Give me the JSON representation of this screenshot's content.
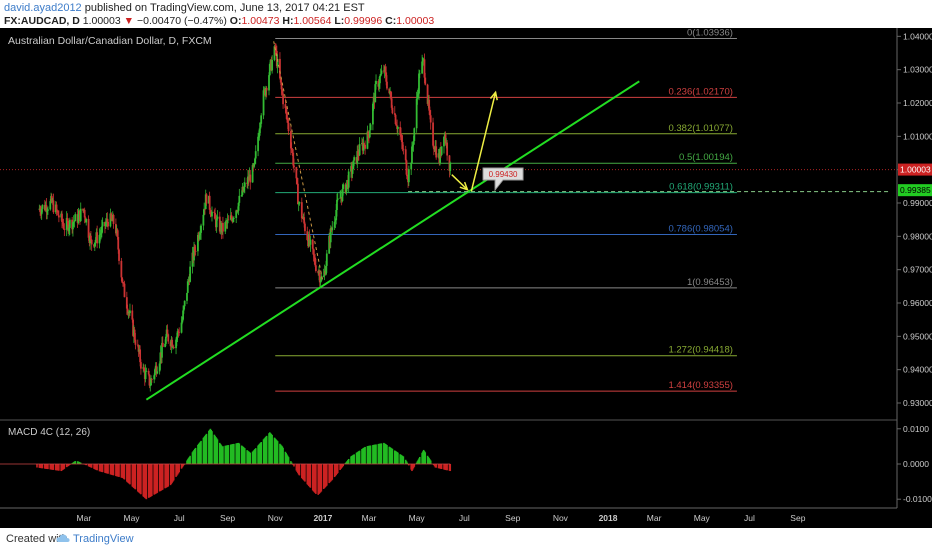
{
  "header": {
    "user": "david.ayad2012",
    "published": "published on TradingView.com, June 13, 2017 04:21 EST",
    "symbol": "FX:AUDCAD, D",
    "last": "1.00003",
    "change_arrow": "▼",
    "change": "−0.00470 (−0.47%)",
    "o_label": "O:",
    "o_value": "1.00473",
    "h_label": "H:",
    "h_value": "1.00564",
    "l_label": "L:",
    "l_value": "0.99996",
    "c_label": "C:",
    "c_value": "1.00003"
  },
  "footer": {
    "created_with": "Created with",
    "brand": "TradingView"
  },
  "colors": {
    "bg": "#000000",
    "up": "#33bb33",
    "down": "#cc3333",
    "trend": "#22dd22",
    "arrow": "#eeee44",
    "axis_text": "#cccccc",
    "red_level": "#d04040",
    "blue_level": "#3366bb"
  },
  "chart_data": {
    "type": "candlestick",
    "title": "Australian Dollar/Canadian Dollar, D, FXCM",
    "price_axis": {
      "ylim": [
        0.9255,
        1.0425
      ],
      "ticks": [
        "1.04000",
        "1.03000",
        "1.02000",
        "1.01000",
        "1.00000",
        "0.99000",
        "0.98000",
        "0.97000",
        "0.96000",
        "0.95000",
        "0.94000",
        "0.93000"
      ],
      "current_price": "1.00003",
      "second_label": "0.99385",
      "callout": "0.99430"
    },
    "x_axis": {
      "months": [
        "Mar",
        "May",
        "Jul",
        "Sep",
        "Nov",
        "2017",
        "Mar",
        "May",
        "Jul",
        "Sep",
        "Nov",
        "2018",
        "Mar",
        "May",
        "Jul",
        "Sep"
      ],
      "bold": [
        "2017",
        "2018"
      ]
    },
    "close_path": [
      [
        "2016-01-01",
        0.988
      ],
      [
        "2016-01-20",
        0.99
      ],
      [
        "2016-02-05",
        0.983
      ],
      [
        "2016-02-20",
        0.985
      ],
      [
        "2016-03-01",
        0.988
      ],
      [
        "2016-03-10",
        0.978
      ],
      [
        "2016-03-20",
        0.98
      ],
      [
        "2016-04-01",
        0.985
      ],
      [
        "2016-04-10",
        0.984
      ],
      [
        "2016-04-20",
        0.965
      ],
      [
        "2016-05-05",
        0.95
      ],
      [
        "2016-05-15",
        0.94
      ],
      [
        "2016-05-25",
        0.936
      ],
      [
        "2016-06-05",
        0.943
      ],
      [
        "2016-06-15",
        0.95
      ],
      [
        "2016-06-25",
        0.948
      ],
      [
        "2016-07-05",
        0.955
      ],
      [
        "2016-07-15",
        0.97
      ],
      [
        "2016-07-25",
        0.98
      ],
      [
        "2016-08-05",
        0.992
      ],
      [
        "2016-08-15",
        0.985
      ],
      [
        "2016-08-25",
        0.982
      ],
      [
        "2016-09-05",
        0.985
      ],
      [
        "2016-09-15",
        0.99
      ],
      [
        "2016-09-25",
        0.996
      ],
      [
        "2016-10-05",
        1.0
      ],
      [
        "2016-10-15",
        1.02
      ],
      [
        "2016-10-25",
        1.03
      ],
      [
        "2016-11-01",
        1.036
      ],
      [
        "2016-11-08",
        1.025
      ],
      [
        "2016-11-20",
        1.01
      ],
      [
        "2016-12-01",
        0.99
      ],
      [
        "2016-12-12",
        0.98
      ],
      [
        "2016-12-22",
        0.972
      ],
      [
        "2017-01-01",
        0.966
      ],
      [
        "2017-01-10",
        0.98
      ],
      [
        "2017-01-20",
        0.99
      ],
      [
        "2017-02-01",
        0.996
      ],
      [
        "2017-02-15",
        1.005
      ],
      [
        "2017-02-28",
        1.01
      ],
      [
        "2017-03-10",
        1.025
      ],
      [
        "2017-03-20",
        1.03
      ],
      [
        "2017-03-30",
        1.02
      ],
      [
        "2017-04-10",
        1.01
      ],
      [
        "2017-04-20",
        0.998
      ],
      [
        "2017-04-25",
        1.005
      ],
      [
        "2017-05-05",
        1.03
      ],
      [
        "2017-05-10",
        1.032
      ],
      [
        "2017-05-20",
        1.01
      ],
      [
        "2017-05-30",
        1.003
      ],
      [
        "2017-06-05",
        1.012
      ],
      [
        "2017-06-13",
        1.0
      ]
    ],
    "macd": {
      "name": "MACD 4C (12, 26)",
      "ylim": [
        -0.0125,
        0.0125
      ],
      "ticks": [
        "0.0100",
        "0.0000",
        "-0.0100"
      ],
      "path": [
        [
          "2016-01-01",
          -0.001
        ],
        [
          "2016-02-01",
          -0.002
        ],
        [
          "2016-02-20",
          0.001
        ],
        [
          "2016-03-20",
          -0.002
        ],
        [
          "2016-04-20",
          -0.004
        ],
        [
          "2016-05-20",
          -0.01
        ],
        [
          "2016-06-20",
          -0.006
        ],
        [
          "2016-07-20",
          0.004
        ],
        [
          "2016-08-10",
          0.01
        ],
        [
          "2016-08-25",
          0.005
        ],
        [
          "2016-09-15",
          0.006
        ],
        [
          "2016-10-01",
          0.003
        ],
        [
          "2016-10-25",
          0.009
        ],
        [
          "2016-11-10",
          0.005
        ],
        [
          "2016-12-01",
          -0.003
        ],
        [
          "2016-12-25",
          -0.009
        ],
        [
          "2017-01-15",
          -0.004
        ],
        [
          "2017-02-05",
          0.002
        ],
        [
          "2017-02-25",
          0.005
        ],
        [
          "2017-03-20",
          0.006
        ],
        [
          "2017-04-15",
          0.002
        ],
        [
          "2017-04-25",
          -0.002
        ],
        [
          "2017-05-10",
          0.004
        ],
        [
          "2017-05-25",
          -0.001
        ],
        [
          "2017-06-13",
          -0.002
        ]
      ]
    },
    "fib": {
      "start": "2016-11-01",
      "end": "2018-06-15",
      "levels": [
        {
          "label": "0(1.03936)",
          "price": 1.03936,
          "color": "#888888"
        },
        {
          "label": "0.236(1.02170)",
          "price": 1.0217,
          "color": "#d04040"
        },
        {
          "label": "0.382(1.01077)",
          "price": 1.01077,
          "color": "#88aa33"
        },
        {
          "label": "0.5(1.00194)",
          "price": 1.00194,
          "color": "#44aa44"
        },
        {
          "label": "0.618(0.99311)",
          "price": 0.99311,
          "color": "#22aa77"
        },
        {
          "label": "0.786(0.98054)",
          "price": 0.98054,
          "color": "#3366bb"
        },
        {
          "label": "1(0.96453)",
          "price": 0.96453,
          "color": "#888888"
        },
        {
          "label": "1.272(0.94418)",
          "price": 0.94418,
          "color": "#88aa33"
        },
        {
          "label": "1.414(0.93355)",
          "price": 0.93355,
          "color": "#d04040"
        }
      ]
    },
    "trendline": [
      [
        "2016-05-20",
        0.931
      ],
      [
        "2018-02-10",
        1.0265
      ]
    ],
    "arrows": [
      {
        "from": [
          "2017-06-15",
          0.9985
        ],
        "to": [
          "2017-07-05",
          0.994
        ]
      },
      {
        "from": [
          "2017-07-10",
          0.9935
        ],
        "to": [
          "2017-08-10",
          1.0232
        ]
      }
    ],
    "price_line": 1.00003,
    "dashed_level": 0.9934
  }
}
